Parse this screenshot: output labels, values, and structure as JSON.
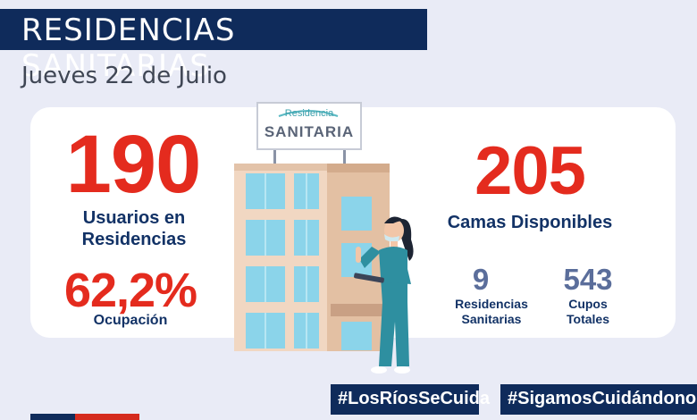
{
  "header": {
    "title": "RESIDENCIAS SANITARIAS",
    "date": "Jueves 22 de Julio"
  },
  "sign": {
    "line1": "Residencia",
    "line2": "SANITARIA"
  },
  "left_stats": {
    "users_value": "190",
    "users_label_line1": "Usuarios en",
    "users_label_line2": "Residencias",
    "occupancy_value": "62,2%",
    "occupancy_label": "Ocupación"
  },
  "right_stats": {
    "beds_value": "205",
    "beds_label": "Camas Disponibles",
    "residences_value": "9",
    "residences_label_line1": "Residencias",
    "residences_label_line2": "Sanitarias",
    "capacity_value": "543",
    "capacity_label_line1": "Cupos",
    "capacity_label_line2": "Totales"
  },
  "hashtags": {
    "first": "#LosRíosSeCuida",
    "second": "#SigamosCuidándonos"
  },
  "colors": {
    "navy": "#0f2b5b",
    "red": "#e42b1e",
    "slate": "#5b6e9b",
    "background": "#e9ebf6"
  }
}
